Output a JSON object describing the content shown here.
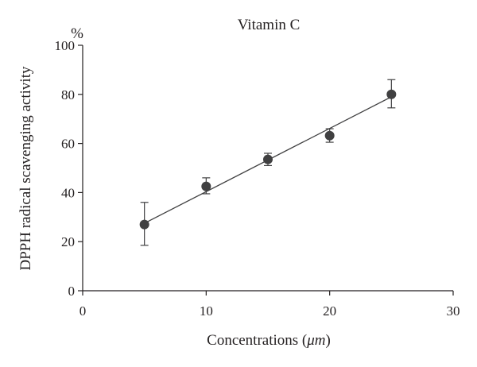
{
  "chart_data": {
    "type": "scatter",
    "title": "Vitamin C",
    "xlabel_prefix": "Concentrations (",
    "xlabel_unit": "μm",
    "xlabel_suffix": ")",
    "ylabel": "DPPH radical scavenging activity",
    "yunit": "%",
    "xlim": [
      0,
      30
    ],
    "ylim": [
      0,
      100
    ],
    "xticks": [
      0,
      10,
      20,
      30
    ],
    "yticks": [
      0,
      20,
      40,
      60,
      80,
      100
    ],
    "grid": false,
    "legend": "none",
    "series": [
      {
        "x": [
          5,
          10,
          15,
          20,
          25
        ],
        "y": [
          27,
          42.5,
          53.5,
          63.2,
          80
        ],
        "err_low": [
          18.5,
          39.5,
          51,
          60.5,
          74.5
        ],
        "err_high": [
          36,
          46,
          56,
          66,
          86
        ]
      }
    ],
    "trendline": {
      "type": "linear",
      "x": [
        5,
        25
      ],
      "y": [
        27.5,
        79
      ]
    },
    "colors": {
      "marker": "#404041",
      "line": "#404041",
      "axis": "#231f20"
    }
  }
}
